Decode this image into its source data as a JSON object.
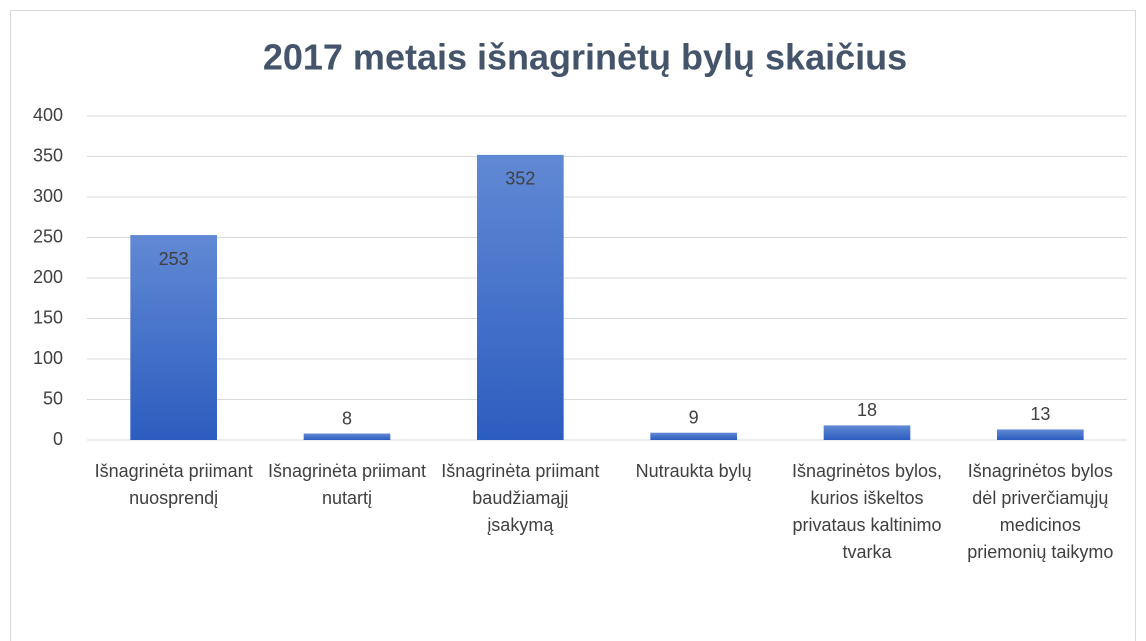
{
  "chart_data": {
    "type": "bar",
    "title": "2017 metais išnagrinėtų bylų skaičius",
    "categories": [
      "Išnagrinėta priimant nuosprendį",
      "Išnagrinėta priimant nutartį",
      "Išnagrinėta priimant baudžiamąjį įsakymą",
      "Nutraukta bylų",
      "Išnagrinėtos bylos, kurios iškeltos privataus kaltinimo tvarka",
      "Išnagrinėtos bylos dėl priverčiamųjų medicinos priemonių taikymo"
    ],
    "values": [
      253,
      8,
      352,
      9,
      18,
      13
    ],
    "color": "#4472c4",
    "ylim": [
      0,
      400
    ],
    "yticks": [
      0,
      50,
      100,
      150,
      200,
      250,
      300,
      350,
      400
    ],
    "grid": true
  }
}
